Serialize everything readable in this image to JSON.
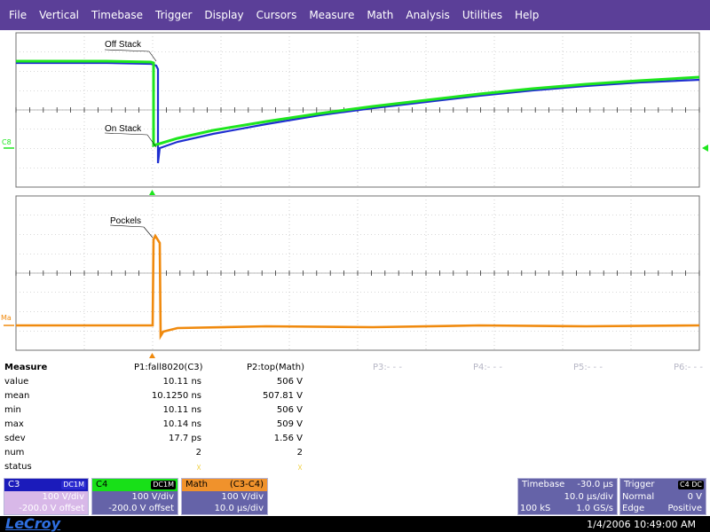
{
  "menu": [
    "File",
    "Vertical",
    "Timebase",
    "Trigger",
    "Display",
    "Cursors",
    "Measure",
    "Math",
    "Analysis",
    "Utilities",
    "Help"
  ],
  "colors": {
    "menu_bg": "#5b3f98",
    "c3_trace": "#1f2fd0",
    "c4_trace": "#1ee61e",
    "math_trace": "#f08a0e",
    "panel_bg": "#6563a8",
    "c3_panel": "#1b1bbb",
    "c4_panel": "#18e018",
    "math_panel": "#f0922c"
  },
  "scope": {
    "upper": {
      "annotation_off": "Off Stack",
      "annotation_on": "On Stack",
      "marker_label": "C8"
    },
    "lower": {
      "annotation": "Pockels",
      "marker_label": "Ma"
    }
  },
  "measure": {
    "title": "Measure",
    "p1_header": "P1:fall8020(C3)",
    "p2_header": "P2:top(Math)",
    "inactive_headers": [
      "P3:- - -",
      "P4:- - -",
      "P5:- - -",
      "P6:- - -"
    ],
    "rows": [
      {
        "label": "value",
        "p1": "10.11 ns",
        "p2": "506 V"
      },
      {
        "label": "mean",
        "p1": "10.1250 ns",
        "p2": "507.81 V"
      },
      {
        "label": "min",
        "p1": "10.11 ns",
        "p2": "506 V"
      },
      {
        "label": "max",
        "p1": "10.14 ns",
        "p2": "509 V"
      },
      {
        "label": "sdev",
        "p1": "17.7 ps",
        "p2": "1.56 V"
      },
      {
        "label": "num",
        "p1": "2",
        "p2": "2"
      },
      {
        "label": "status",
        "p1": "☓",
        "p2": "☓"
      }
    ]
  },
  "channels": {
    "c3": {
      "name": "C3",
      "badge": "DC1M",
      "scale": "100 V/div",
      "offset": "-200.0 V offset"
    },
    "c4": {
      "name": "C4",
      "badge": "DC1M",
      "scale": "100 V/div",
      "offset": "-200.0 V offset"
    },
    "math": {
      "name": "Math",
      "source": "(C3-C4)",
      "scale": "100 V/div",
      "time": "10.0 µs/div"
    }
  },
  "timebase": {
    "label": "Timebase",
    "delay": "-30.0 µs",
    "per_div": "10.0 µs/div",
    "samples": "100 kS",
    "rate": "1.0 GS/s"
  },
  "trigger": {
    "label": "Trigger",
    "badge": "C4 DC",
    "mode": "Normal",
    "level": "0 V",
    "type": "Edge",
    "slope": "Positive"
  },
  "footer": {
    "brand": "LeCroy",
    "datetime": "1/4/2006 10:49:00 AM"
  }
}
